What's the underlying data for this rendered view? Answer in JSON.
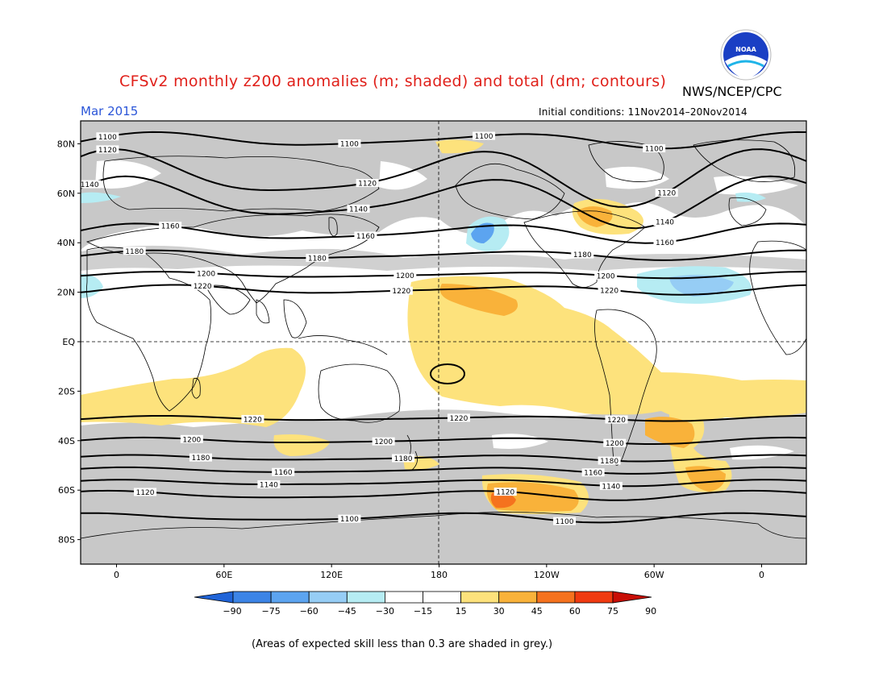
{
  "title": "CFSv2 monthly z200 anomalies (m; shaded) and total (dm; contours)",
  "agency": "NWS/NCEP/CPC",
  "logo_text": "NOAA",
  "month": "Mar 2015",
  "initial_conditions": "Initial conditions: 11Nov2014–20Nov2014",
  "footnote": "(Areas of expected skill less than 0.3 are shaded in grey.)",
  "lat_labels": [
    "80N",
    "60N",
    "40N",
    "20N",
    "EQ",
    "20S",
    "40S",
    "60S",
    "80S"
  ],
  "lon_labels": [
    "0",
    "60E",
    "120E",
    "180",
    "120W",
    "60W",
    "0"
  ],
  "contours": [
    {
      "value": "1100",
      "lat": 81.5,
      "amp": 2.5,
      "phase": 0.5,
      "labels_lon": [
        -5,
        130,
        205,
        300
      ]
    },
    {
      "value": "1120",
      "lat": 67,
      "amp": 9,
      "phase": 1.2,
      "labels_lon": [
        -5,
        140,
        307
      ]
    },
    {
      "value": "1140",
      "lat": 57,
      "amp": 8,
      "phase": 1.0,
      "labels_lon": [
        -15,
        135,
        306
      ]
    },
    {
      "value": "1160",
      "lat": 44,
      "amp": 3,
      "phase": 0.8,
      "labels_lon": [
        30,
        139,
        306
      ]
    },
    {
      "value": "1180",
      "lat": 35,
      "amp": 1.5,
      "phase": 0.5,
      "labels_lon": [
        10,
        112,
        260
      ]
    },
    {
      "value": "1200",
      "lat": 27,
      "amp": 1,
      "phase": 0.4,
      "labels_lon": [
        50,
        161,
        273
      ]
    },
    {
      "value": "1220",
      "lat": 21,
      "amp": 1.5,
      "phase": 0.2,
      "labels_lon": [
        48,
        159,
        275
      ]
    },
    {
      "value": "1220",
      "lat": -31,
      "amp": 0.8,
      "phase": 0.4,
      "labels_lon": [
        76,
        191,
        279
      ]
    },
    {
      "value": "1200",
      "lat": -40,
      "amp": 1,
      "phase": 0.7,
      "labels_lon": [
        42,
        149,
        278
      ]
    },
    {
      "value": "1180",
      "lat": -47,
      "amp": 1,
      "phase": 0.9,
      "labels_lon": [
        47,
        160,
        275
      ]
    },
    {
      "value": "1160",
      "lat": -52,
      "amp": 1,
      "phase": 1.0,
      "labels_lon": [
        93,
        266
      ]
    },
    {
      "value": "1140",
      "lat": -57,
      "amp": 1,
      "phase": 1.1,
      "labels_lon": [
        85,
        276
      ]
    },
    {
      "value": "1120",
      "lat": -62,
      "amp": 1.5,
      "phase": 1.3,
      "labels_lon": [
        16,
        217
      ]
    },
    {
      "value": "1100",
      "lat": -71,
      "amp": 1.5,
      "phase": 1.6,
      "labels_lon": [
        130,
        250
      ]
    }
  ],
  "colorbar": {
    "colors": [
      "#2064d8",
      "#3c84e6",
      "#5ca4f0",
      "#96cdf5",
      "#b6ecf3",
      "#ffffff",
      "#ffffff",
      "#fde27c",
      "#f9b23a",
      "#f5721e",
      "#f03a10",
      "#c80e06"
    ],
    "labels": [
      "−90",
      "−75",
      "−60",
      "−45",
      "−30",
      "−15",
      "15",
      "30",
      "45",
      "60",
      "75",
      "90"
    ]
  },
  "colors": {
    "skill_grey": "#c8c8c8",
    "title_red": "#e0201a",
    "month_blue": "#2a55d8"
  }
}
